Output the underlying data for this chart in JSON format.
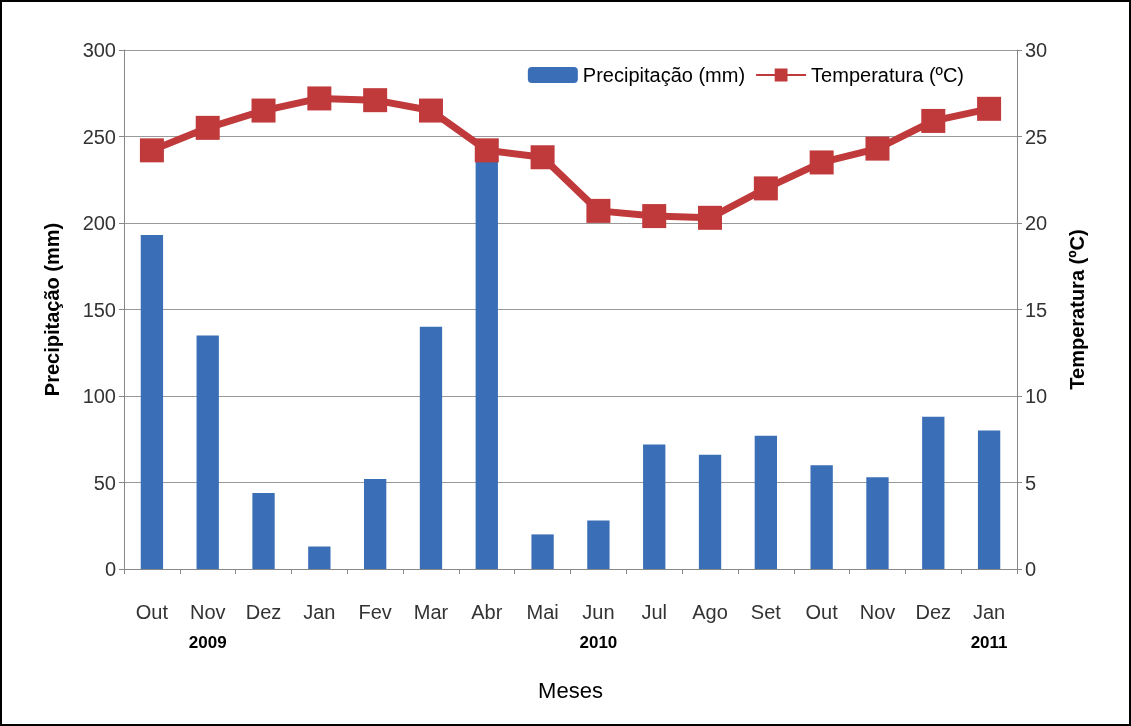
{
  "chart_data": {
    "type": "bar",
    "xlabel": "Meses",
    "ylabel": "Precipitação (mm)",
    "y2label": "Temperatura (ºC)",
    "categories": [
      "Out",
      "Nov\n2009",
      "Dez",
      "Jan",
      "Fev",
      "Mar",
      "Abr",
      "Mai",
      "Jun\n2010",
      "Jul",
      "Ago",
      "Set",
      "Out",
      "Nov",
      "Dez",
      "Jan\n2011"
    ],
    "series": [
      {
        "name": "Precipitação (mm)",
        "color": "#3a6fb7",
        "values": [
          193,
          135,
          44,
          13,
          52,
          140,
          236,
          20,
          28,
          72,
          66,
          77,
          60,
          53,
          88,
          80
        ]
      },
      {
        "name": "Temperatura (ºC)",
        "type": "line",
        "axis": "y2",
        "color": "#c0393b",
        "values": [
          24.2,
          25.5,
          26.5,
          27.2,
          27.1,
          26.5,
          24.2,
          23.8,
          20.7,
          20.4,
          20.3,
          22.0,
          23.5,
          24.3,
          25.9,
          26.6
        ]
      }
    ],
    "ylim": [
      0,
      300
    ],
    "yticks": [
      0,
      50,
      100,
      150,
      200,
      250,
      300
    ],
    "y2lim": [
      0,
      30
    ],
    "y2ticks": [
      0,
      5,
      10,
      15,
      20,
      25,
      30
    ],
    "grid": "y",
    "legend": "top right",
    "marker": "square",
    "line_style": "solid"
  }
}
